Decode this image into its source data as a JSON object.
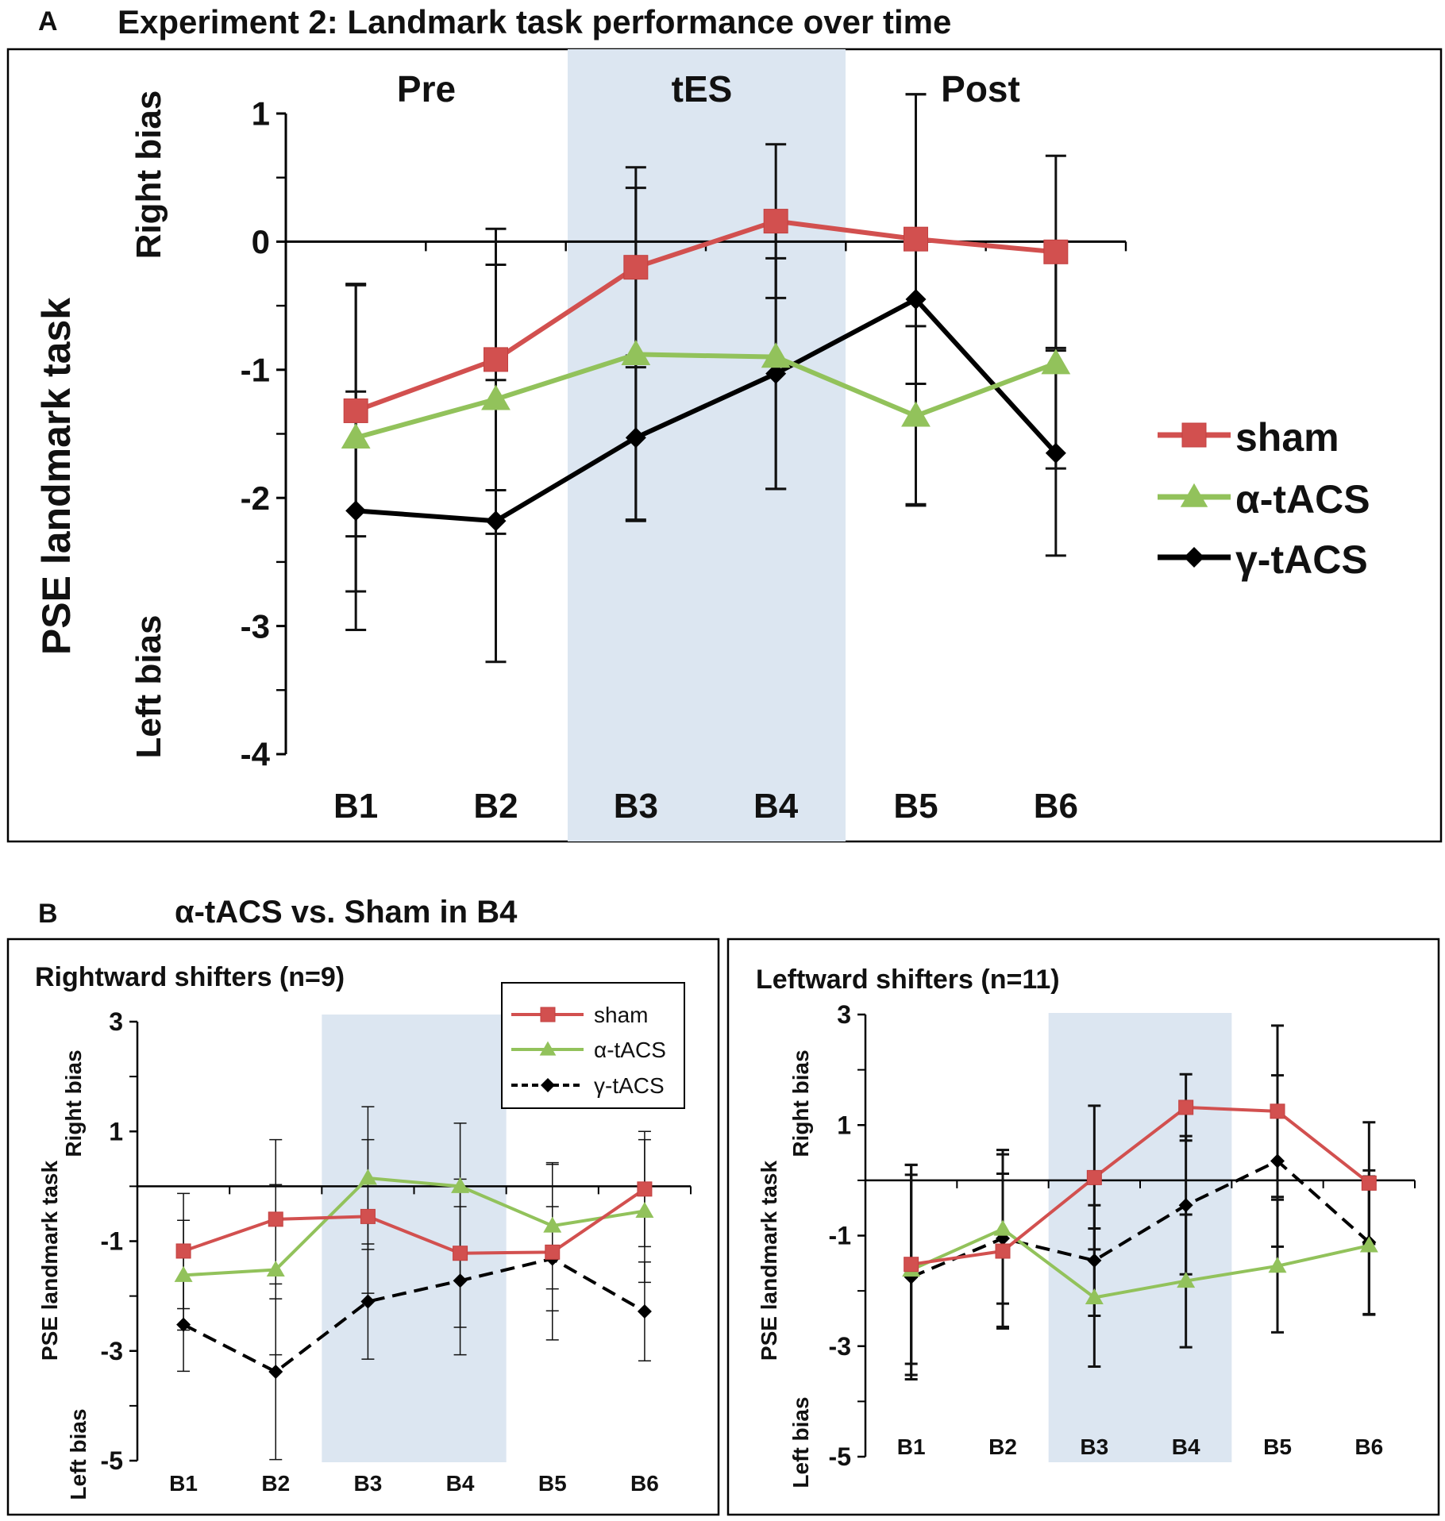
{
  "colors": {
    "sham": "#d2504f",
    "alpha": "#92c25b",
    "gamma": "#000000",
    "shade": "#dce6f1",
    "frame": "#000000"
  },
  "panel_a": {
    "letter": "A",
    "title": "Experiment 2: Landmark task performance over time",
    "ylabel": "PSE landmark task",
    "right_bias": "Right bias",
    "left_bias": "Left bias",
    "phases": [
      "Pre",
      "tES",
      "Post"
    ],
    "legend": [
      "sham",
      "α-tACS",
      "γ-tACS"
    ]
  },
  "panel_b": {
    "letter": "B",
    "title": "α-tACS vs. Sham in B4",
    "ylabel": "PSE landmark task",
    "right_bias": "Right bias",
    "left_bias": "Left bias",
    "left_title": "Rightward shifters (n=9)",
    "right_title": "Leftward shifters (n=11)",
    "legend": [
      "sham",
      "α-tACS",
      "γ-tACS"
    ]
  },
  "chart_data": [
    {
      "id": "A",
      "type": "line",
      "title": "Experiment 2: Landmark task performance over time",
      "ylabel": "PSE landmark task",
      "categories": [
        "B1",
        "B2",
        "B3",
        "B4",
        "B5",
        "B6"
      ],
      "ylim": [
        -4,
        1
      ],
      "yticks": [
        1,
        0,
        -1,
        -2,
        -3,
        -4
      ],
      "shaded": [
        "B3",
        "B4"
      ],
      "series": [
        {
          "name": "sham",
          "values": [
            -1.32,
            -0.92,
            -0.2,
            0.16,
            0.02,
            -0.08
          ],
          "err": [
            0.98,
            1.02,
            0.78,
            0.6,
            1.13,
            0.75
          ]
        },
        {
          "name": "α-tACS",
          "values": [
            -1.53,
            -1.23,
            -0.88,
            -0.9,
            -1.36,
            -0.95
          ],
          "err": [
            1.2,
            1.05,
            1.3,
            1.03,
            0.7,
            0.82
          ]
        },
        {
          "name": "γ-tACS",
          "values": [
            -2.1,
            -2.18,
            -1.53,
            -1.03,
            -0.45,
            -1.65
          ],
          "err": [
            0.93,
            1.1,
            0.64,
            0.9,
            1.6,
            0.8
          ]
        }
      ]
    },
    {
      "id": "B-left",
      "type": "line",
      "title": "Rightward shifters (n=9)",
      "ylabel": "PSE landmark task",
      "categories": [
        "B1",
        "B2",
        "B3",
        "B4",
        "B5",
        "B6"
      ],
      "ylim": [
        -5,
        3
      ],
      "yticks": [
        3,
        1,
        -1,
        -3,
        -5
      ],
      "shaded": [
        "B3",
        "B4"
      ],
      "series": [
        {
          "name": "sham",
          "values": [
            -1.18,
            -0.6,
            -0.55,
            -1.22,
            -1.2,
            -0.05
          ],
          "err": [
            1.05,
            1.45,
            1.4,
            1.35,
            1.6,
            1.05
          ]
        },
        {
          "name": "α-tACS",
          "values": [
            -1.62,
            -1.52,
            0.15,
            0.0,
            -0.72,
            -0.45
          ],
          "err": [
            1.0,
            1.55,
            1.3,
            1.15,
            1.15,
            1.3
          ]
        },
        {
          "name": "γ-tACS",
          "values": [
            -2.52,
            -3.38,
            -2.1,
            -1.72,
            -1.32,
            -2.28
          ],
          "err": [
            0.85,
            1.6,
            1.05,
            1.35,
            0.95,
            0.9
          ]
        }
      ]
    },
    {
      "id": "B-right",
      "type": "line",
      "title": "Leftward shifters (n=11)",
      "ylabel": "PSE landmark task",
      "categories": [
        "B1",
        "B2",
        "B3",
        "B4",
        "B5",
        "B6"
      ],
      "ylim": [
        -5,
        3
      ],
      "yticks": [
        3,
        1,
        -1,
        -3,
        -5
      ],
      "shaded": [
        "B3",
        "B4"
      ],
      "series": [
        {
          "name": "sham",
          "values": [
            -1.52,
            -1.28,
            0.05,
            1.32,
            1.25,
            -0.05
          ],
          "err": [
            1.8,
            1.4,
            1.3,
            0.6,
            1.55,
            1.1
          ]
        },
        {
          "name": "α-tACS",
          "values": [
            -1.62,
            -0.88,
            -2.12,
            -1.82,
            -1.55,
            -1.18
          ],
          "err": [
            1.9,
            1.35,
            1.25,
            1.2,
            1.2,
            1.25
          ]
        },
        {
          "name": "γ-tACS",
          "values": [
            -1.75,
            -1.05,
            -1.45,
            -0.45,
            0.35,
            -1.12
          ],
          "err": [
            1.85,
            1.6,
            1.0,
            1.25,
            1.55,
            1.3
          ]
        }
      ]
    }
  ]
}
